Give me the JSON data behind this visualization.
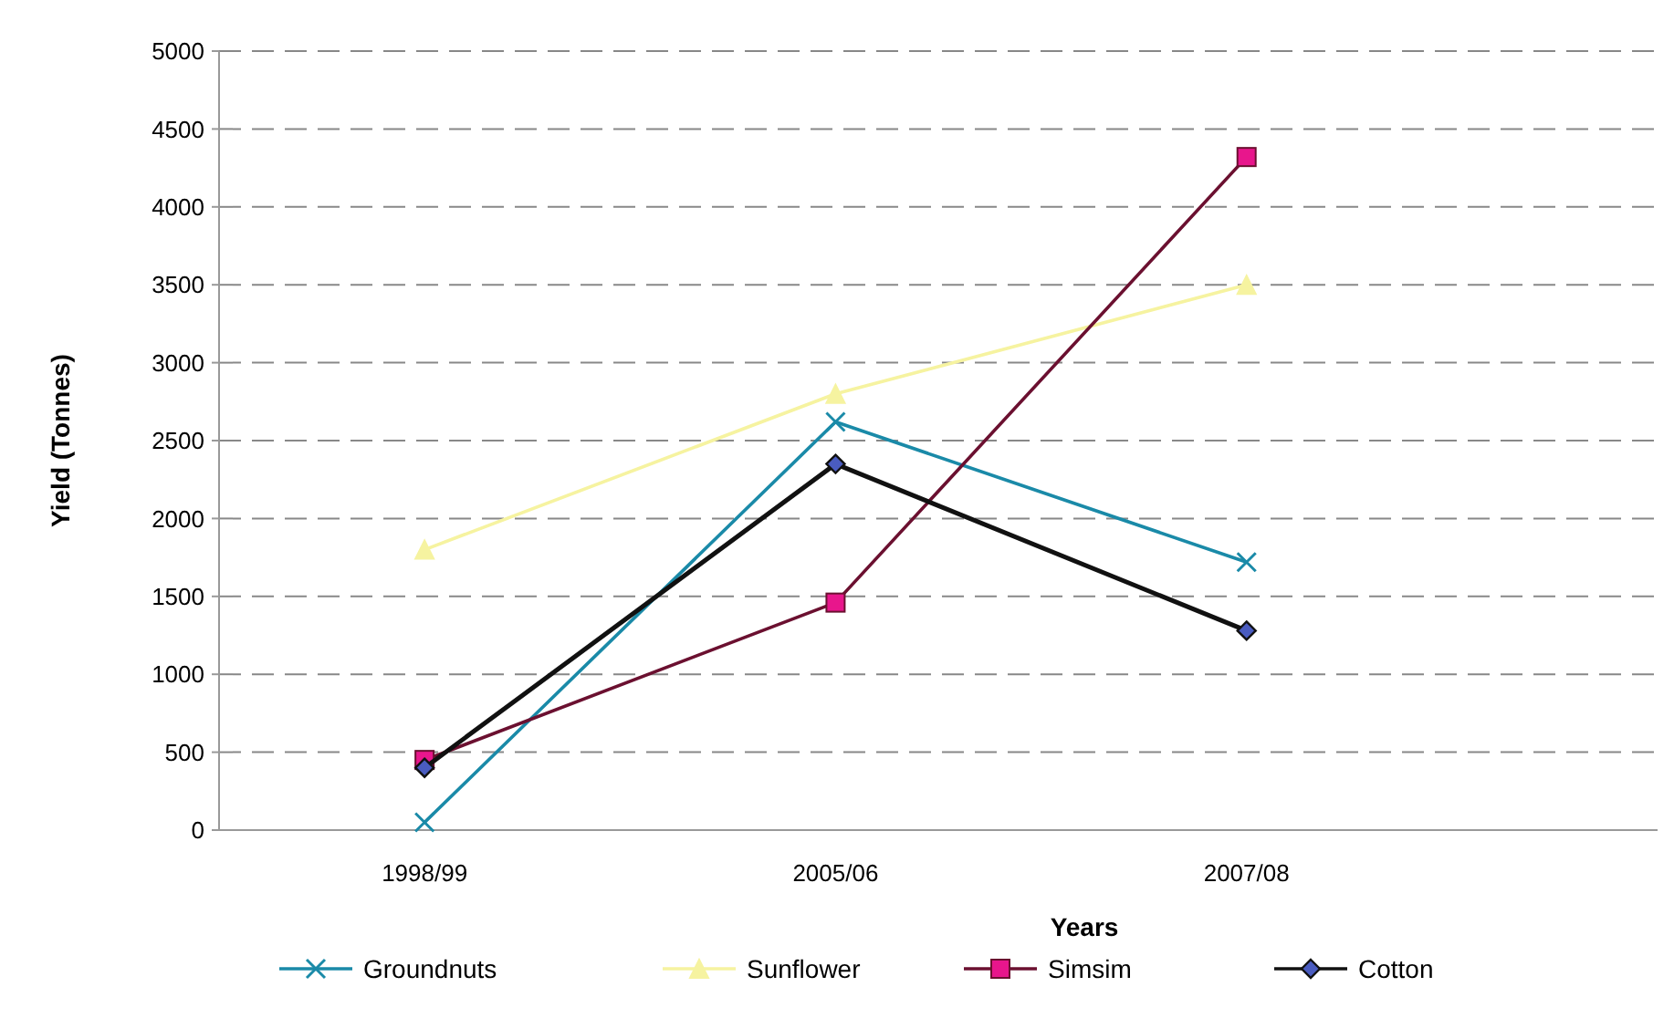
{
  "chart_data": {
    "type": "line",
    "xlabel": "Years",
    "ylabel": "Yield (Tonnes)",
    "categories": [
      "1998/99",
      "2005/06",
      "2007/08"
    ],
    "series": [
      {
        "name": "Groundnuts",
        "color": "#1a8aa8",
        "marker": "cross",
        "values": [
          50,
          2620,
          1720
        ]
      },
      {
        "name": "Sunflower",
        "color": "#f6f3a0",
        "marker": "triangle",
        "values": [
          1800,
          2800,
          3500
        ]
      },
      {
        "name": "Simsim",
        "color": "#6b1030",
        "marker": "square",
        "values": [
          450,
          1460,
          4320
        ]
      },
      {
        "name": "Cotton",
        "color": "#111111",
        "marker": "diamond",
        "values": [
          400,
          2350,
          1280
        ]
      }
    ],
    "ylim": [
      0,
      5000
    ],
    "yticks": [
      0,
      500,
      1000,
      1500,
      2000,
      2500,
      3000,
      3500,
      4000,
      4500,
      5000
    ],
    "grid": "y",
    "legend": "bottom"
  }
}
